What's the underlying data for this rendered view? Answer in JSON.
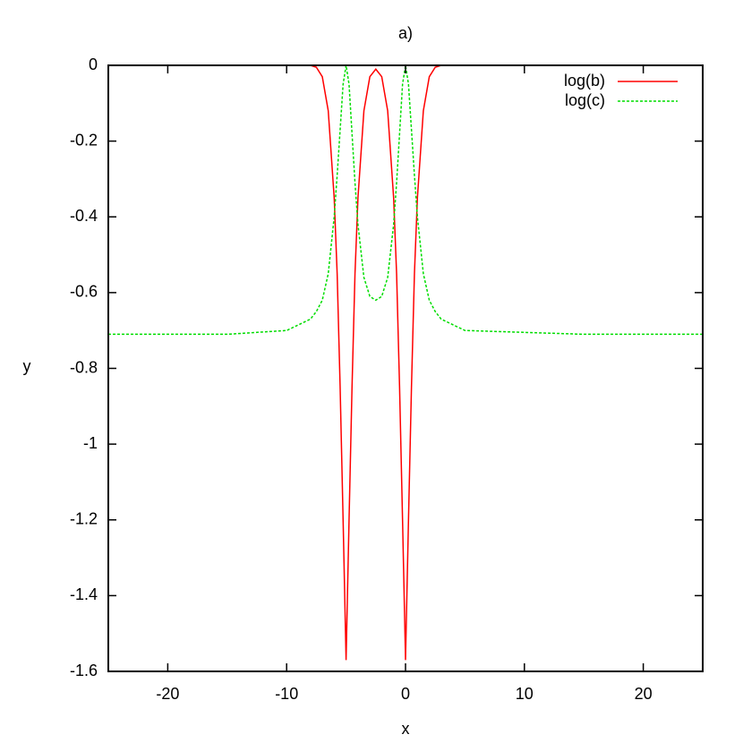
{
  "chart_data": {
    "type": "line",
    "title": "a)",
    "x_label": "x",
    "y_label": "y",
    "x": [
      -25,
      -20,
      -15,
      -10,
      -8,
      -7.5,
      -7,
      -6.5,
      -6,
      -5.75,
      -5.5,
      -5.25,
      -5,
      -4.75,
      -4.5,
      -4.25,
      -4,
      -3.5,
      -3,
      -2.5,
      -2,
      -1.5,
      -1,
      -0.75,
      -0.5,
      -0.25,
      0,
      0.25,
      0.5,
      0.75,
      1,
      1.5,
      2,
      2.5,
      3,
      5,
      10,
      15,
      20,
      25
    ],
    "series": [
      {
        "name": "log(b)",
        "color": "#ff0000",
        "dash": false,
        "values": [
          0,
          0,
          0,
          0,
          0,
          -0.005,
          -0.03,
          -0.12,
          -0.35,
          -0.55,
          -0.85,
          -1.2,
          -1.57,
          -1.2,
          -0.85,
          -0.55,
          -0.35,
          -0.12,
          -0.03,
          -0.01,
          -0.03,
          -0.12,
          -0.35,
          -0.55,
          -0.85,
          -1.2,
          -1.57,
          -1.2,
          -0.85,
          -0.55,
          -0.35,
          -0.12,
          -0.03,
          -0.005,
          0,
          0,
          0,
          0,
          0,
          0
        ]
      },
      {
        "name": "log(c)",
        "color": "#00dd00",
        "dash": true,
        "values": [
          -0.71,
          -0.71,
          -0.71,
          -0.7,
          -0.67,
          -0.65,
          -0.62,
          -0.55,
          -0.4,
          -0.29,
          -0.17,
          -0.05,
          0,
          -0.05,
          -0.18,
          -0.31,
          -0.42,
          -0.56,
          -0.61,
          -0.62,
          -0.61,
          -0.56,
          -0.42,
          -0.31,
          -0.18,
          -0.05,
          0,
          -0.05,
          -0.17,
          -0.29,
          -0.4,
          -0.55,
          -0.62,
          -0.65,
          -0.67,
          -0.7,
          -0.705,
          -0.71,
          -0.71,
          -0.71
        ]
      }
    ],
    "xlim": [
      -25,
      25
    ],
    "ylim": [
      -1.6,
      0
    ],
    "xticks": [
      -20,
      -10,
      0,
      10,
      20
    ],
    "yticks": [
      0,
      -0.2,
      -0.4,
      -0.6,
      -0.8,
      -1,
      -1.2,
      -1.4,
      -1.6
    ],
    "legend": "top-right",
    "grid": false
  }
}
